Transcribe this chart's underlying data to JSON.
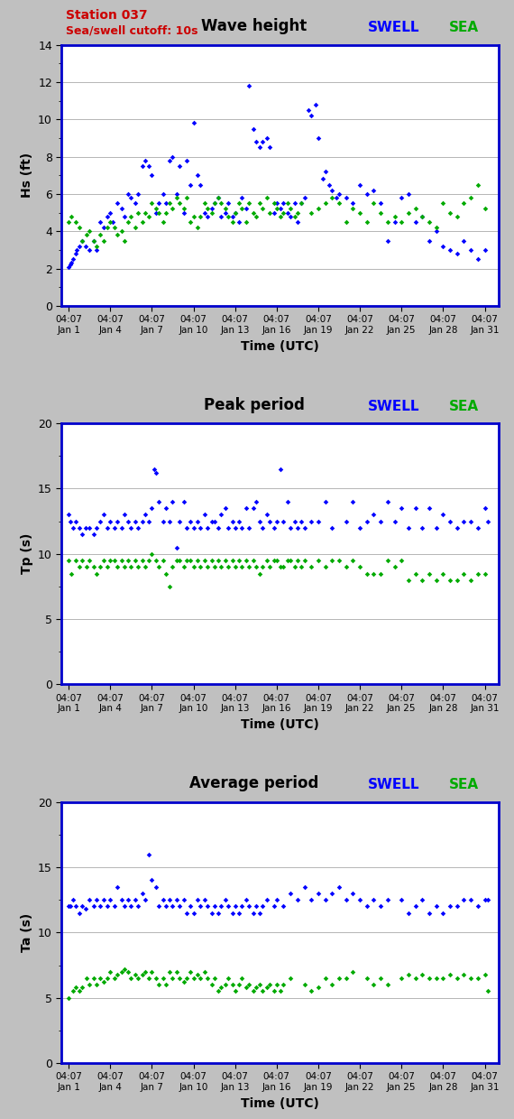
{
  "title1": "Wave height",
  "title2": "Peak period",
  "title3": "Average period",
  "station_label": "Station 037",
  "cutoff_label": "Sea/swell cutoff: 10s",
  "xlabel": "Time (UTC)",
  "ylabel1": "Hs (ft)",
  "ylabel2": "Tp (s)",
  "ylabel3": "Ta (s)",
  "swell_label": "SWELL",
  "sea_label": "SEA",
  "swell_color": "#0000FF",
  "sea_color": "#00AA00",
  "bg_color": "#C0C0C0",
  "plot_bg_color": "#FFFFFF",
  "border_color": "#0000CC",
  "title_color": "#000000",
  "station_color": "#CC0000",
  "x_ticks": [
    1,
    4,
    7,
    10,
    13,
    16,
    19,
    22,
    25,
    28,
    31
  ],
  "x_tick_labels": [
    "04:07\nJan 1",
    "04:07\nJan 4",
    "04:07\nJan 7",
    "04:07\nJan 10",
    "04:07\nJan 13",
    "04:07\nJan 16",
    "04:07\nJan 19",
    "04:07\nJan 22",
    "04:07\nJan 25",
    "04:07\nJan 28",
    "04:07\nJan 31"
  ],
  "x_min": 0.5,
  "x_max": 32.0,
  "hs_ylim": [
    0,
    14
  ],
  "hs_yticks": [
    0,
    2,
    4,
    6,
    8,
    10,
    12,
    14
  ],
  "tp_ylim": [
    0,
    20
  ],
  "tp_yticks": [
    0,
    5,
    10,
    15,
    20
  ],
  "ta_ylim": [
    0,
    20
  ],
  "ta_yticks": [
    0,
    5,
    10,
    15,
    20
  ],
  "hs_swell_x": [
    1.0,
    1.1,
    1.2,
    1.3,
    1.5,
    1.6,
    1.8,
    2.0,
    2.2,
    2.5,
    2.8,
    3.0,
    3.3,
    3.5,
    3.8,
    4.0,
    4.2,
    4.5,
    4.8,
    5.0,
    5.3,
    5.5,
    5.8,
    6.0,
    6.3,
    6.5,
    6.8,
    7.0,
    7.3,
    7.5,
    7.8,
    8.0,
    8.3,
    8.5,
    8.8,
    9.0,
    9.3,
    9.5,
    9.8,
    10.0,
    10.3,
    10.5,
    10.8,
    11.0,
    11.3,
    11.5,
    11.8,
    12.0,
    12.3,
    12.5,
    12.8,
    13.0,
    13.3,
    13.5,
    13.8,
    14.0,
    14.3,
    14.5,
    14.8,
    15.0,
    15.3,
    15.5,
    15.8,
    16.0,
    16.3,
    16.5,
    16.8,
    17.0,
    17.3,
    17.5,
    17.8,
    18.0,
    18.3,
    18.5,
    18.8,
    19.0,
    19.3,
    19.5,
    19.8,
    20.0,
    20.3,
    20.5,
    21.0,
    21.5,
    22.0,
    22.5,
    23.0,
    23.5,
    24.0,
    24.5,
    25.0,
    25.5,
    26.0,
    26.5,
    27.0,
    27.5,
    28.0,
    28.5,
    29.0,
    29.5,
    30.0,
    30.5,
    31.0
  ],
  "hs_swell_y": [
    2.1,
    2.2,
    2.3,
    2.5,
    2.8,
    3.0,
    3.2,
    3.5,
    3.2,
    3.0,
    3.5,
    3.0,
    4.5,
    4.2,
    4.8,
    5.0,
    4.5,
    5.5,
    5.2,
    4.8,
    6.0,
    5.8,
    5.5,
    6.0,
    7.5,
    7.8,
    7.5,
    7.0,
    5.0,
    5.5,
    6.0,
    5.5,
    7.8,
    8.0,
    6.0,
    7.5,
    5.0,
    7.8,
    6.5,
    9.8,
    7.0,
    6.5,
    5.0,
    4.8,
    5.2,
    5.5,
    5.8,
    4.8,
    5.0,
    5.5,
    4.8,
    5.0,
    4.5,
    5.8,
    5.2,
    11.8,
    9.5,
    8.8,
    8.5,
    8.8,
    9.0,
    8.5,
    5.0,
    5.5,
    5.2,
    5.5,
    5.0,
    4.8,
    5.5,
    4.5,
    5.5,
    5.8,
    10.5,
    10.2,
    10.8,
    9.0,
    6.8,
    7.2,
    6.5,
    6.2,
    5.8,
    6.0,
    5.8,
    5.5,
    6.5,
    6.0,
    6.2,
    5.5,
    3.5,
    4.5,
    5.8,
    6.0,
    4.5,
    4.8,
    3.5,
    4.0,
    3.2,
    3.0,
    2.8,
    3.5,
    3.0,
    2.5,
    3.0
  ],
  "hs_sea_x": [
    1.0,
    1.2,
    1.5,
    1.8,
    2.0,
    2.3,
    2.5,
    2.8,
    3.0,
    3.3,
    3.5,
    3.8,
    4.0,
    4.3,
    4.5,
    4.8,
    5.0,
    5.3,
    5.5,
    5.8,
    6.0,
    6.3,
    6.5,
    6.8,
    7.0,
    7.3,
    7.5,
    7.8,
    8.0,
    8.3,
    8.5,
    8.8,
    9.0,
    9.3,
    9.5,
    9.8,
    10.0,
    10.3,
    10.5,
    10.8,
    11.0,
    11.3,
    11.5,
    11.8,
    12.0,
    12.3,
    12.5,
    12.8,
    13.0,
    13.3,
    13.5,
    13.8,
    14.0,
    14.3,
    14.5,
    14.8,
    15.0,
    15.3,
    15.5,
    15.8,
    16.0,
    16.3,
    16.5,
    16.8,
    17.0,
    17.3,
    17.5,
    17.8,
    18.5,
    19.0,
    19.5,
    20.0,
    20.5,
    21.0,
    21.5,
    22.0,
    22.5,
    23.0,
    23.5,
    24.0,
    24.5,
    25.0,
    25.5,
    26.0,
    26.5,
    27.0,
    27.5,
    28.0,
    28.5,
    29.0,
    29.5,
    30.0,
    30.5,
    31.0
  ],
  "hs_sea_y": [
    4.5,
    4.8,
    4.5,
    4.2,
    3.5,
    3.8,
    4.0,
    3.5,
    3.2,
    3.8,
    3.5,
    4.2,
    4.5,
    4.2,
    3.8,
    4.0,
    3.5,
    4.5,
    4.8,
    4.2,
    5.0,
    4.5,
    5.0,
    4.8,
    5.5,
    5.2,
    5.0,
    4.5,
    5.0,
    5.5,
    5.2,
    5.8,
    5.5,
    5.2,
    5.8,
    4.5,
    4.8,
    4.2,
    4.8,
    5.5,
    5.2,
    5.0,
    5.5,
    5.8,
    5.5,
    5.2,
    4.8,
    4.5,
    5.0,
    5.5,
    5.2,
    4.5,
    5.5,
    5.0,
    4.8,
    5.5,
    5.2,
    5.8,
    5.0,
    5.5,
    5.2,
    4.8,
    5.0,
    5.5,
    5.2,
    4.8,
    5.0,
    5.5,
    5.0,
    5.2,
    5.5,
    5.8,
    5.5,
    4.5,
    5.2,
    5.0,
    4.5,
    5.5,
    5.0,
    4.5,
    4.8,
    4.5,
    5.0,
    5.2,
    4.8,
    4.5,
    4.2,
    5.5,
    5.0,
    4.8,
    5.5,
    5.8,
    6.5,
    5.2
  ],
  "tp_swell_x": [
    1.0,
    1.1,
    1.3,
    1.5,
    1.8,
    2.0,
    2.2,
    2.5,
    2.8,
    3.0,
    3.3,
    3.5,
    3.8,
    4.0,
    4.3,
    4.5,
    4.8,
    5.0,
    5.3,
    5.5,
    5.8,
    6.0,
    6.3,
    6.5,
    6.8,
    7.0,
    7.2,
    7.3,
    7.5,
    7.8,
    8.0,
    8.3,
    8.5,
    8.8,
    9.0,
    9.3,
    9.5,
    9.8,
    10.0,
    10.3,
    10.5,
    10.8,
    11.0,
    11.3,
    11.5,
    11.8,
    12.0,
    12.3,
    12.5,
    12.8,
    13.0,
    13.3,
    13.5,
    13.8,
    14.0,
    14.3,
    14.5,
    14.8,
    15.0,
    15.3,
    15.5,
    15.8,
    16.0,
    16.3,
    16.5,
    16.8,
    17.0,
    17.3,
    17.5,
    17.8,
    18.0,
    18.5,
    19.0,
    19.5,
    20.0,
    21.0,
    21.5,
    22.0,
    22.5,
    23.0,
    23.5,
    24.0,
    24.5,
    25.0,
    25.5,
    26.0,
    26.5,
    27.0,
    27.5,
    28.0,
    28.5,
    29.0,
    29.5,
    30.0,
    30.5,
    31.0,
    31.2
  ],
  "tp_swell_y": [
    13.0,
    12.5,
    12.0,
    12.5,
    12.0,
    11.5,
    12.0,
    12.0,
    11.5,
    12.0,
    12.5,
    13.0,
    12.0,
    12.5,
    12.0,
    12.5,
    12.0,
    13.0,
    12.5,
    12.0,
    12.5,
    12.0,
    12.5,
    13.0,
    12.5,
    13.5,
    16.5,
    16.2,
    14.0,
    12.5,
    13.5,
    12.5,
    14.0,
    10.5,
    12.5,
    14.0,
    12.0,
    12.5,
    12.0,
    12.5,
    12.0,
    13.0,
    12.0,
    12.5,
    12.5,
    12.0,
    13.0,
    13.5,
    12.0,
    12.5,
    12.0,
    12.5,
    12.0,
    13.5,
    12.0,
    13.5,
    14.0,
    12.5,
    12.0,
    13.0,
    12.5,
    12.0,
    12.5,
    16.5,
    12.5,
    14.0,
    12.0,
    12.5,
    12.0,
    12.5,
    12.0,
    12.5,
    12.5,
    14.0,
    12.0,
    12.5,
    14.0,
    12.0,
    12.5,
    13.0,
    12.5,
    14.0,
    12.5,
    13.5,
    12.0,
    13.5,
    12.0,
    13.5,
    12.0,
    13.0,
    12.5,
    12.0,
    12.5,
    12.5,
    12.0,
    13.5,
    12.5
  ],
  "tp_sea_x": [
    1.0,
    1.2,
    1.5,
    1.8,
    2.0,
    2.3,
    2.5,
    2.8,
    3.0,
    3.3,
    3.5,
    3.8,
    4.0,
    4.3,
    4.5,
    4.8,
    5.0,
    5.3,
    5.5,
    5.8,
    6.0,
    6.3,
    6.5,
    6.8,
    7.0,
    7.3,
    7.5,
    7.8,
    8.0,
    8.3,
    8.5,
    8.8,
    9.0,
    9.3,
    9.5,
    9.8,
    10.0,
    10.3,
    10.5,
    10.8,
    11.0,
    11.3,
    11.5,
    11.8,
    12.0,
    12.3,
    12.5,
    12.8,
    13.0,
    13.3,
    13.5,
    13.8,
    14.0,
    14.3,
    14.5,
    14.8,
    15.0,
    15.3,
    15.5,
    15.8,
    16.0,
    16.3,
    16.5,
    16.8,
    17.0,
    17.3,
    17.5,
    17.8,
    18.0,
    18.5,
    19.0,
    19.5,
    20.0,
    20.5,
    21.0,
    21.5,
    22.0,
    22.5,
    23.0,
    23.5,
    24.0,
    24.5,
    25.0,
    25.5,
    26.0,
    26.5,
    27.0,
    27.5,
    28.0,
    28.5,
    29.0,
    29.5,
    30.0,
    30.5,
    31.0
  ],
  "tp_sea_y": [
    9.5,
    8.5,
    9.5,
    9.0,
    9.5,
    9.0,
    9.5,
    9.0,
    8.5,
    9.0,
    9.5,
    9.0,
    9.5,
    9.5,
    9.0,
    9.5,
    9.0,
    9.5,
    9.0,
    9.5,
    9.0,
    9.5,
    9.0,
    9.5,
    10.0,
    9.5,
    9.0,
    9.5,
    8.5,
    7.5,
    9.0,
    9.5,
    9.5,
    9.0,
    9.5,
    9.5,
    9.0,
    9.5,
    9.0,
    9.5,
    9.0,
    9.5,
    9.0,
    9.5,
    9.0,
    9.5,
    9.0,
    9.5,
    9.0,
    9.5,
    9.0,
    9.5,
    9.0,
    9.5,
    9.0,
    8.5,
    9.0,
    9.5,
    9.0,
    9.5,
    9.5,
    9.0,
    9.0,
    9.5,
    9.5,
    9.0,
    9.5,
    9.0,
    9.5,
    9.0,
    9.5,
    9.0,
    9.5,
    9.5,
    9.0,
    9.5,
    9.0,
    8.5,
    8.5,
    8.5,
    9.5,
    9.0,
    9.5,
    8.0,
    8.5,
    8.0,
    8.5,
    8.0,
    8.5,
    8.0,
    8.0,
    8.5,
    8.0,
    8.5,
    8.5
  ],
  "ta_swell_x": [
    1.0,
    1.1,
    1.3,
    1.5,
    1.8,
    2.0,
    2.2,
    2.5,
    2.8,
    3.0,
    3.3,
    3.5,
    3.8,
    4.0,
    4.3,
    4.5,
    4.8,
    5.0,
    5.3,
    5.5,
    5.8,
    6.0,
    6.3,
    6.5,
    6.8,
    7.0,
    7.3,
    7.5,
    7.8,
    8.0,
    8.3,
    8.5,
    8.8,
    9.0,
    9.3,
    9.5,
    9.8,
    10.0,
    10.3,
    10.5,
    10.8,
    11.0,
    11.3,
    11.5,
    11.8,
    12.0,
    12.3,
    12.5,
    12.8,
    13.0,
    13.3,
    13.5,
    13.8,
    14.0,
    14.3,
    14.5,
    14.8,
    15.0,
    15.3,
    15.8,
    16.0,
    16.5,
    17.0,
    17.5,
    18.0,
    18.5,
    19.0,
    19.5,
    20.0,
    20.5,
    21.0,
    21.5,
    22.0,
    22.5,
    23.0,
    23.5,
    24.0,
    25.0,
    25.5,
    26.0,
    26.5,
    27.0,
    27.5,
    28.0,
    28.5,
    29.0,
    29.5,
    30.0,
    30.5,
    31.0,
    31.2
  ],
  "ta_swell_y": [
    12.0,
    12.0,
    12.5,
    12.0,
    11.5,
    12.0,
    11.8,
    12.5,
    12.0,
    12.5,
    12.0,
    12.5,
    12.0,
    12.5,
    12.0,
    13.5,
    12.5,
    12.0,
    12.5,
    12.0,
    12.5,
    12.0,
    13.0,
    12.5,
    16.0,
    14.0,
    13.5,
    12.0,
    12.5,
    12.0,
    12.5,
    12.0,
    12.5,
    12.0,
    12.5,
    11.5,
    12.0,
    11.5,
    12.5,
    12.0,
    12.5,
    12.0,
    11.5,
    12.0,
    11.5,
    12.0,
    12.5,
    12.0,
    11.5,
    12.0,
    11.5,
    12.0,
    12.5,
    12.0,
    11.5,
    12.0,
    11.5,
    12.0,
    12.5,
    12.0,
    12.5,
    12.0,
    13.0,
    12.5,
    13.5,
    12.5,
    13.0,
    12.5,
    13.0,
    13.5,
    12.5,
    13.0,
    12.5,
    12.0,
    12.5,
    12.0,
    12.5,
    12.5,
    11.5,
    12.0,
    12.5,
    11.5,
    12.0,
    11.5,
    12.0,
    12.0,
    12.5,
    12.5,
    12.0,
    12.5,
    12.5
  ],
  "ta_sea_x": [
    1.0,
    1.3,
    1.5,
    1.8,
    2.0,
    2.3,
    2.5,
    2.8,
    3.0,
    3.3,
    3.5,
    3.8,
    4.0,
    4.3,
    4.5,
    4.8,
    5.0,
    5.3,
    5.5,
    5.8,
    6.0,
    6.3,
    6.5,
    6.8,
    7.0,
    7.3,
    7.5,
    7.8,
    8.0,
    8.3,
    8.5,
    8.8,
    9.0,
    9.3,
    9.5,
    9.8,
    10.0,
    10.3,
    10.5,
    10.8,
    11.0,
    11.3,
    11.5,
    11.8,
    12.0,
    12.3,
    12.5,
    12.8,
    13.0,
    13.3,
    13.5,
    13.8,
    14.0,
    14.3,
    14.5,
    14.8,
    15.0,
    15.3,
    15.5,
    15.8,
    16.0,
    16.3,
    16.5,
    17.0,
    18.0,
    18.5,
    19.0,
    19.5,
    20.0,
    20.5,
    21.0,
    21.5,
    22.5,
    23.0,
    23.5,
    24.0,
    25.0,
    25.5,
    26.0,
    26.5,
    27.0,
    27.5,
    28.0,
    28.5,
    29.0,
    29.5,
    30.0,
    30.5,
    31.0,
    31.2
  ],
  "ta_sea_y": [
    5.0,
    5.5,
    5.8,
    5.5,
    5.8,
    6.5,
    6.0,
    6.5,
    6.0,
    6.5,
    6.2,
    6.5,
    7.0,
    6.5,
    6.8,
    7.0,
    7.2,
    7.0,
    6.5,
    6.8,
    6.5,
    6.8,
    7.0,
    6.5,
    7.0,
    6.5,
    6.0,
    6.5,
    6.0,
    7.0,
    6.5,
    7.0,
    6.5,
    6.2,
    6.5,
    7.0,
    6.5,
    6.8,
    6.5,
    7.0,
    6.5,
    6.0,
    6.5,
    5.5,
    5.8,
    6.0,
    6.5,
    6.0,
    5.5,
    6.0,
    6.5,
    5.8,
    6.0,
    5.5,
    5.8,
    6.0,
    5.5,
    5.8,
    6.0,
    5.5,
    6.0,
    5.5,
    6.0,
    6.5,
    6.0,
    5.5,
    5.8,
    6.5,
    6.0,
    6.5,
    6.5,
    7.0,
    6.5,
    6.0,
    6.5,
    6.0,
    6.5,
    6.8,
    6.5,
    6.8,
    6.5,
    6.5,
    6.5,
    6.8,
    6.5,
    6.8,
    6.5,
    6.5,
    6.8,
    5.5
  ]
}
